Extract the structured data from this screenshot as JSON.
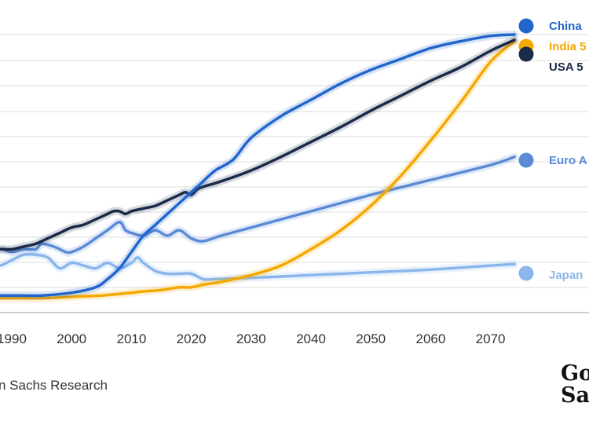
{
  "chart_data": {
    "type": "line",
    "title": "",
    "xlabel": "",
    "ylabel": "",
    "xlim": [
      1986,
      2076
    ],
    "x_ticks": [
      "1990",
      "2000",
      "2010",
      "2020",
      "2030",
      "2040",
      "2050",
      "2060",
      "2070"
    ],
    "grid": true,
    "legend_placement": "right end labels",
    "series": [
      {
        "name": "China",
        "label_text": "China",
        "color": "#2266cc",
        "points": [
          [
            1986,
            96
          ],
          [
            1990,
            96
          ],
          [
            1995,
            96
          ],
          [
            2000,
            95
          ],
          [
            2004,
            93
          ],
          [
            2006,
            90
          ],
          [
            2008,
            86
          ],
          [
            2010,
            80
          ],
          [
            2012,
            74
          ],
          [
            2014,
            70
          ],
          [
            2016,
            66
          ],
          [
            2018,
            62
          ],
          [
            2019,
            60
          ],
          [
            2020,
            58
          ],
          [
            2021,
            56
          ],
          [
            2022,
            54
          ],
          [
            2024,
            50
          ],
          [
            2027,
            46
          ],
          [
            2030,
            38
          ],
          [
            2035,
            30
          ],
          [
            2040,
            24
          ],
          [
            2045,
            18
          ],
          [
            2050,
            13
          ],
          [
            2055,
            9
          ],
          [
            2060,
            5
          ],
          [
            2065,
            2.5
          ],
          [
            2070,
            0.5
          ],
          [
            2074,
            0
          ]
        ]
      },
      {
        "name": "India",
        "label_text": "India 5",
        "color": "#f5a800",
        "points": [
          [
            1986,
            97
          ],
          [
            1990,
            97
          ],
          [
            1995,
            97
          ],
          [
            2000,
            96.5
          ],
          [
            2005,
            96
          ],
          [
            2010,
            95
          ],
          [
            2012,
            94.5
          ],
          [
            2015,
            94
          ],
          [
            2018,
            93
          ],
          [
            2020,
            93
          ],
          [
            2022,
            92
          ],
          [
            2025,
            91
          ],
          [
            2030,
            88.5
          ],
          [
            2035,
            85
          ],
          [
            2040,
            79
          ],
          [
            2045,
            72
          ],
          [
            2050,
            63
          ],
          [
            2055,
            52
          ],
          [
            2060,
            39
          ],
          [
            2065,
            25
          ],
          [
            2070,
            10
          ],
          [
            2074,
            2.5
          ]
        ]
      },
      {
        "name": "USA",
        "label_text": "USA 5",
        "color": "#1b2a48",
        "points": [
          [
            1986,
            80
          ],
          [
            1988,
            79
          ],
          [
            1990,
            79
          ],
          [
            1992,
            78
          ],
          [
            1994,
            77
          ],
          [
            1996,
            75
          ],
          [
            1998,
            73
          ],
          [
            2000,
            71
          ],
          [
            2002,
            70
          ],
          [
            2004,
            68
          ],
          [
            2006,
            66
          ],
          [
            2007,
            65
          ],
          [
            2008,
            65
          ],
          [
            2009,
            66
          ],
          [
            2010,
            65
          ],
          [
            2012,
            64
          ],
          [
            2014,
            63
          ],
          [
            2016,
            61
          ],
          [
            2018,
            59
          ],
          [
            2019,
            58
          ],
          [
            2020,
            59
          ],
          [
            2021,
            57
          ],
          [
            2022,
            56
          ],
          [
            2025,
            54
          ],
          [
            2030,
            50
          ],
          [
            2035,
            45
          ],
          [
            2040,
            39.5
          ],
          [
            2045,
            34
          ],
          [
            2050,
            28
          ],
          [
            2055,
            22.5
          ],
          [
            2060,
            17
          ],
          [
            2065,
            12
          ],
          [
            2070,
            6
          ],
          [
            2074,
            2
          ]
        ]
      },
      {
        "name": "Euro Area",
        "label_text": "Euro A",
        "color": "#5b8bd6",
        "points": [
          [
            1986,
            81
          ],
          [
            1988,
            79
          ],
          [
            1990,
            80
          ],
          [
            1992,
            79
          ],
          [
            1994,
            79
          ],
          [
            1995,
            77
          ],
          [
            1997,
            78
          ],
          [
            1999,
            80
          ],
          [
            2000,
            80
          ],
          [
            2002,
            78
          ],
          [
            2004,
            75
          ],
          [
            2006,
            72
          ],
          [
            2008,
            69
          ],
          [
            2009,
            72
          ],
          [
            2010,
            73
          ],
          [
            2012,
            74
          ],
          [
            2014,
            72
          ],
          [
            2016,
            74
          ],
          [
            2018,
            72
          ],
          [
            2020,
            75
          ],
          [
            2022,
            76
          ],
          [
            2025,
            74
          ],
          [
            2030,
            71
          ],
          [
            2040,
            65
          ],
          [
            2050,
            59
          ],
          [
            2060,
            53.5
          ],
          [
            2070,
            48
          ],
          [
            2074,
            45
          ]
        ]
      },
      {
        "name": "Japan",
        "label_text": "Japan",
        "color": "#8ab6ec",
        "points": [
          [
            1986,
            84
          ],
          [
            1988,
            85
          ],
          [
            1990,
            83
          ],
          [
            1992,
            81
          ],
          [
            1994,
            81
          ],
          [
            1996,
            82
          ],
          [
            1998,
            86
          ],
          [
            2000,
            84
          ],
          [
            2002,
            85
          ],
          [
            2004,
            86
          ],
          [
            2006,
            84
          ],
          [
            2008,
            86
          ],
          [
            2010,
            84
          ],
          [
            2011,
            82
          ],
          [
            2012,
            84
          ],
          [
            2014,
            87
          ],
          [
            2016,
            88
          ],
          [
            2018,
            88
          ],
          [
            2020,
            88
          ],
          [
            2022,
            90
          ],
          [
            2024,
            90
          ],
          [
            2030,
            89.5
          ],
          [
            2040,
            88.5
          ],
          [
            2050,
            87.5
          ],
          [
            2060,
            86.5
          ],
          [
            2070,
            85
          ],
          [
            2074,
            84.5
          ]
        ]
      }
    ]
  },
  "source_text": "n Sachs Research",
  "logo_text": [
    "Go",
    "Sa"
  ]
}
